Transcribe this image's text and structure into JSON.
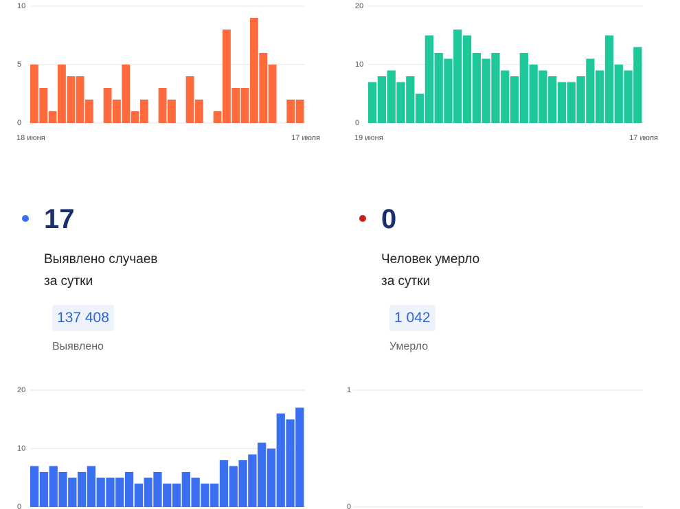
{
  "charts": [
    {
      "chart_data": {
        "type": "bar",
        "color": "#ff6a3d",
        "ylim": [
          0,
          10
        ],
        "yticks": [
          0,
          5,
          10
        ],
        "x_start_label": "18 июня",
        "x_end_label": "17 июля",
        "values": [
          5,
          3,
          1,
          5,
          4,
          4,
          2,
          0,
          3,
          2,
          5,
          1,
          2,
          0,
          3,
          2,
          0,
          4,
          2,
          0,
          1,
          8,
          3,
          3,
          9,
          6,
          5,
          0,
          2,
          2
        ]
      }
    },
    {
      "chart_data": {
        "type": "bar",
        "color": "#1ec89a",
        "ylim": [
          0,
          20
        ],
        "yticks": [
          0,
          10,
          20
        ],
        "x_start_label": "19 июня",
        "x_end_label": "17 июля",
        "values": [
          7,
          8,
          9,
          7,
          8,
          5,
          15,
          12,
          11,
          16,
          15,
          12,
          11,
          12,
          9,
          8,
          12,
          10,
          9,
          8,
          7,
          7,
          8,
          11,
          9,
          15,
          10,
          9,
          13
        ]
      }
    },
    {
      "chart_data": {
        "type": "bar",
        "color": "#3a6ff2",
        "ylim": [
          0,
          20
        ],
        "yticks": [
          0,
          10,
          20
        ],
        "values": [
          7,
          6,
          7,
          6,
          5,
          6,
          7,
          5,
          5,
          5,
          6,
          4,
          5,
          6,
          4,
          4,
          6,
          5,
          4,
          4,
          8,
          7,
          8,
          9,
          11,
          10,
          16,
          15,
          17
        ]
      }
    },
    {
      "chart_data": {
        "type": "bar",
        "color": "#c81e1e",
        "ylim": [
          0,
          1
        ],
        "yticks": [
          0,
          1
        ],
        "values": []
      }
    }
  ],
  "stats": [
    {
      "dot_color": "#3a6ff2",
      "value": "17",
      "line1": "Выявлено случаев",
      "line2": "за сутки",
      "total": "137 408",
      "total_label": "Выявлено"
    },
    {
      "dot_color": "#c81e1e",
      "value": "0",
      "line1": "Человек умерло",
      "line2": "за сутки",
      "total": "1 042",
      "total_label": "Умерло"
    }
  ]
}
